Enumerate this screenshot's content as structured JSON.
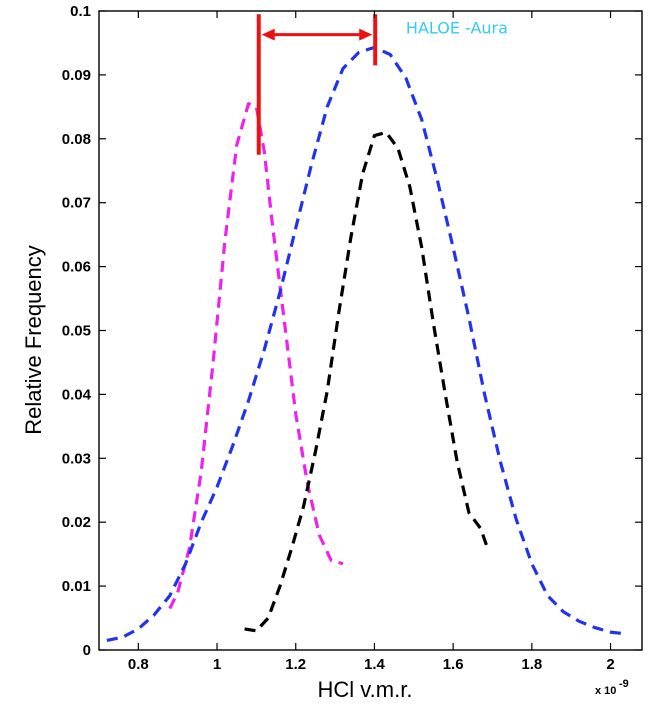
{
  "chart_data": {
    "type": "line",
    "xlabel": "HCl v.m.r.",
    "ylabel": "Relative Frequency",
    "x_multiplier": "x 10",
    "x_multiplier_exp": "-9",
    "xlim": [
      0.7,
      2.08
    ],
    "ylim": [
      0,
      0.1
    ],
    "x_ticks": [
      "0.8",
      "1",
      "1.2",
      "1.4",
      "1.6",
      "1.8",
      "2"
    ],
    "x_tick_values": [
      0.8,
      1.0,
      1.2,
      1.4,
      1.6,
      1.8,
      2.0
    ],
    "y_ticks": [
      "0",
      "0.01",
      "0.02",
      "0.03",
      "0.04",
      "0.05",
      "0.06",
      "0.07",
      "0.08",
      "0.09",
      "0.1"
    ],
    "y_tick_values": [
      0,
      0.01,
      0.02,
      0.03,
      0.04,
      0.05,
      0.06,
      0.07,
      0.08,
      0.09,
      0.1
    ],
    "grid": false,
    "annotation": {
      "text": "HALOE -Aura",
      "color": "#33ccee",
      "x": 1.48,
      "y": 0.0965
    },
    "arrow": {
      "color": "#ee1111",
      "x_start": 1.106,
      "x_end": 1.402,
      "y": 0.0963,
      "left_bar": [
        0.0775,
        0.0995
      ],
      "right_bar": [
        0.0915,
        0.0995
      ]
    },
    "series": [
      {
        "color": "#ee22ee",
        "style": "dashed",
        "x": [
          0.88,
          0.9,
          0.93,
          0.96,
          0.99,
          1.02,
          1.05,
          1.08,
          1.1,
          1.12,
          1.14,
          1.17,
          1.2,
          1.23,
          1.26,
          1.29,
          1.32
        ],
        "y": [
          0.0065,
          0.009,
          0.016,
          0.028,
          0.045,
          0.064,
          0.079,
          0.0855,
          0.085,
          0.078,
          0.067,
          0.052,
          0.037,
          0.026,
          0.018,
          0.014,
          0.0135
        ]
      },
      {
        "color": "#2233ee",
        "style": "dashed",
        "x": [
          0.72,
          0.76,
          0.8,
          0.84,
          0.88,
          0.92,
          0.96,
          1.0,
          1.04,
          1.08,
          1.12,
          1.16,
          1.2,
          1.24,
          1.28,
          1.32,
          1.36,
          1.4,
          1.44,
          1.48,
          1.52,
          1.56,
          1.6,
          1.64,
          1.68,
          1.72,
          1.76,
          1.8,
          1.84,
          1.88,
          1.92,
          1.96,
          2.0,
          2.04
        ],
        "y": [
          0.0015,
          0.002,
          0.0033,
          0.0055,
          0.0085,
          0.0135,
          0.02,
          0.0255,
          0.032,
          0.039,
          0.047,
          0.056,
          0.066,
          0.076,
          0.085,
          0.091,
          0.0935,
          0.0943,
          0.0932,
          0.0895,
          0.083,
          0.0735,
          0.063,
          0.052,
          0.04,
          0.0295,
          0.0205,
          0.0135,
          0.0085,
          0.006,
          0.0045,
          0.0035,
          0.0028,
          0.0025
        ]
      },
      {
        "color": "#000000",
        "style": "dashed",
        "x": [
          1.07,
          1.1,
          1.13,
          1.16,
          1.19,
          1.22,
          1.25,
          1.28,
          1.31,
          1.34,
          1.37,
          1.4,
          1.43,
          1.46,
          1.49,
          1.52,
          1.55,
          1.58,
          1.61,
          1.64,
          1.67,
          1.69
        ],
        "y": [
          0.0033,
          0.003,
          0.005,
          0.01,
          0.016,
          0.0225,
          0.031,
          0.0405,
          0.053,
          0.0645,
          0.0745,
          0.0805,
          0.081,
          0.0785,
          0.0725,
          0.063,
          0.051,
          0.04,
          0.0295,
          0.0215,
          0.019,
          0.0155
        ]
      }
    ]
  }
}
